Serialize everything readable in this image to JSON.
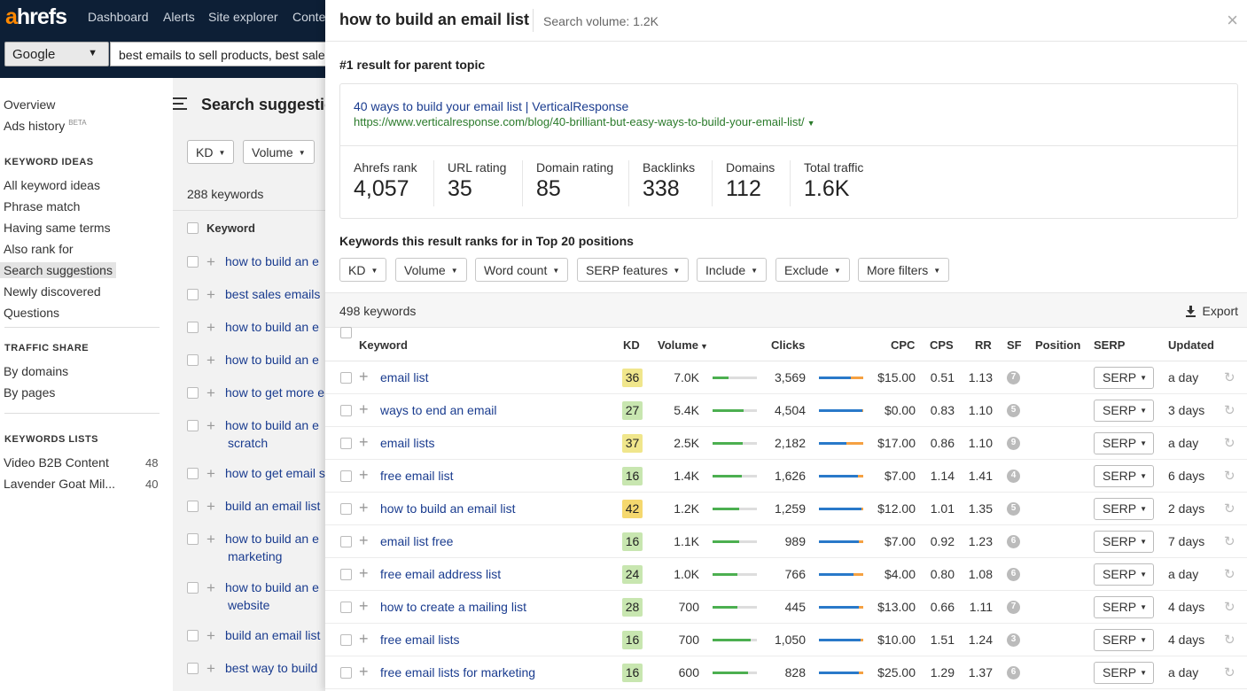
{
  "app": {
    "logo_a": "a",
    "logo_rest": "hrefs"
  },
  "topnav": [
    "Dashboard",
    "Alerts",
    "Site explorer",
    "Conte"
  ],
  "search": {
    "engine": "Google",
    "query": "best emails to sell products, best sale"
  },
  "sidebar": {
    "overview": "Overview",
    "ads_history": "Ads history",
    "beta": "BETA",
    "keyword_ideas_head": "KEYWORD IDEAS",
    "keyword_ideas": [
      "All keyword ideas",
      "Phrase match",
      "Having same terms",
      "Also rank for",
      "Search suggestions",
      "Newly discovered",
      "Questions"
    ],
    "traffic_share_head": "TRAFFIC SHARE",
    "traffic_share": [
      "By domains",
      "By pages"
    ],
    "keywords_lists_head": "KEYWORDS LISTS",
    "lists": [
      {
        "name": "Video B2B Content",
        "count": "48"
      },
      {
        "name": "Lavender Goat Mil...",
        "count": "40"
      }
    ]
  },
  "main": {
    "title": "Search suggestio",
    "kd_btn": "KD",
    "volume_btn": "Volume",
    "count": "288 keywords",
    "col_keyword": "Keyword",
    "rows": [
      {
        "l1": "how to build an e",
        "l2": ""
      },
      {
        "l1": "best sales emails",
        "l2": ""
      },
      {
        "l1": "how to build an e",
        "l2": ""
      },
      {
        "l1": "how to build an e",
        "l2": ""
      },
      {
        "l1": "how to get more e",
        "l2": ""
      },
      {
        "l1": "how to build an e",
        "l2": "scratch"
      },
      {
        "l1": "how to get email s",
        "l2": ""
      },
      {
        "l1": "build an email list",
        "l2": ""
      },
      {
        "l1": "how to build an e",
        "l2": "marketing"
      },
      {
        "l1": "how to build an e",
        "l2": "website"
      },
      {
        "l1": "build an email list",
        "l2": ""
      },
      {
        "l1": "best way to build",
        "l2": ""
      }
    ]
  },
  "panel": {
    "title": "how to build an email list",
    "volume": "Search volume: 1.2K",
    "close": "×",
    "parent_topic": "#1 result for parent topic",
    "result_title": "40 ways to build your email list | VerticalResponse",
    "result_url": "https://www.verticalresponse.com/blog/40-brilliant-but-easy-ways-to-build-your-email-list/",
    "metrics": [
      {
        "label": "Ahrefs rank",
        "value": "4,057"
      },
      {
        "label": "URL rating",
        "value": "35"
      },
      {
        "label": "Domain rating",
        "value": "85"
      },
      {
        "label": "Backlinks",
        "value": "338"
      },
      {
        "label": "Domains",
        "value": "112"
      },
      {
        "label": "Total traffic",
        "value": "1.6K"
      }
    ],
    "ranks_heading": "Keywords this result ranks for in Top 20 positions",
    "filters": [
      "KD",
      "Volume",
      "Word count",
      "SERP features",
      "Include",
      "Exclude",
      "More filters"
    ],
    "count": "498 keywords",
    "export": "Export",
    "columns": [
      "Keyword",
      "KD",
      "Volume",
      "Clicks",
      "CPC",
      "CPS",
      "RR",
      "SF",
      "Position",
      "SERP",
      "Updated"
    ],
    "rows": [
      {
        "kw": "email list",
        "kd": "36",
        "kd_color": "#f0e68c",
        "vol": "7.0K",
        "vol_frac": 0.35,
        "clicks": "3,569",
        "clicks_blue": 0.72,
        "clicks_orange": 0.28,
        "cpc": "$15.00",
        "cps": "0.51",
        "rr": "1.13",
        "sf": "7",
        "serp": "SERP",
        "updated": "a day"
      },
      {
        "kw": "ways to end an email",
        "kd": "27",
        "kd_color": "#c8e6b0",
        "vol": "5.4K",
        "vol_frac": 0.7,
        "clicks": "4,504",
        "clicks_blue": 0.98,
        "clicks_orange": 0.02,
        "cpc": "$0.00",
        "cps": "0.83",
        "rr": "1.10",
        "sf": "5",
        "serp": "SERP",
        "updated": "3 days"
      },
      {
        "kw": "email lists",
        "kd": "37",
        "kd_color": "#f0e68c",
        "vol": "2.5K",
        "vol_frac": 0.68,
        "clicks": "2,182",
        "clicks_blue": 0.62,
        "clicks_orange": 0.38,
        "cpc": "$17.00",
        "cps": "0.86",
        "rr": "1.10",
        "sf": "9",
        "serp": "SERP",
        "updated": "a day"
      },
      {
        "kw": "free email list",
        "kd": "16",
        "kd_color": "#c8e6b0",
        "vol": "1.4K",
        "vol_frac": 0.65,
        "clicks": "1,626",
        "clicks_blue": 0.88,
        "clicks_orange": 0.12,
        "cpc": "$7.00",
        "cps": "1.14",
        "rr": "1.41",
        "sf": "4",
        "serp": "SERP",
        "updated": "6 days"
      },
      {
        "kw": "how to build an email list",
        "kd": "42",
        "kd_color": "#f5d86e",
        "vol": "1.2K",
        "vol_frac": 0.6,
        "clicks": "1,259",
        "clicks_blue": 0.96,
        "clicks_orange": 0.04,
        "cpc": "$12.00",
        "cps": "1.01",
        "rr": "1.35",
        "sf": "5",
        "serp": "SERP",
        "updated": "2 days"
      },
      {
        "kw": "email list free",
        "kd": "16",
        "kd_color": "#c8e6b0",
        "vol": "1.1K",
        "vol_frac": 0.6,
        "clicks": "989",
        "clicks_blue": 0.9,
        "clicks_orange": 0.1,
        "cpc": "$7.00",
        "cps": "0.92",
        "rr": "1.23",
        "sf": "6",
        "serp": "SERP",
        "updated": "7 days"
      },
      {
        "kw": "free email address list",
        "kd": "24",
        "kd_color": "#c8e6b0",
        "vol": "1.0K",
        "vol_frac": 0.55,
        "clicks": "766",
        "clicks_blue": 0.78,
        "clicks_orange": 0.22,
        "cpc": "$4.00",
        "cps": "0.80",
        "rr": "1.08",
        "sf": "6",
        "serp": "SERP",
        "updated": "a day"
      },
      {
        "kw": "how to create a mailing list",
        "kd": "28",
        "kd_color": "#c8e6b0",
        "vol": "700",
        "vol_frac": 0.55,
        "clicks": "445",
        "clicks_blue": 0.9,
        "clicks_orange": 0.1,
        "cpc": "$13.00",
        "cps": "0.66",
        "rr": "1.11",
        "sf": "7",
        "serp": "SERP",
        "updated": "4 days"
      },
      {
        "kw": "free email lists",
        "kd": "16",
        "kd_color": "#c8e6b0",
        "vol": "700",
        "vol_frac": 0.85,
        "clicks": "1,050",
        "clicks_blue": 0.93,
        "clicks_orange": 0.07,
        "cpc": "$10.00",
        "cps": "1.51",
        "rr": "1.24",
        "sf": "3",
        "serp": "SERP",
        "updated": "4 days"
      },
      {
        "kw": "free email lists for marketing",
        "kd": "16",
        "kd_color": "#c8e6b0",
        "vol": "600",
        "vol_frac": 0.8,
        "clicks": "828",
        "clicks_blue": 0.9,
        "clicks_orange": 0.1,
        "cpc": "$25.00",
        "cps": "1.29",
        "rr": "1.37",
        "sf": "6",
        "serp": "SERP",
        "updated": "a day"
      }
    ]
  },
  "colors": {
    "topbar": "#0d1f36",
    "logo_accent": "#ff8800",
    "link": "#1a3c8f",
    "url_green": "#2a7a2a",
    "bar_green": "#4caf50",
    "bar_blue": "#2979c9",
    "bar_orange": "#f5a142"
  }
}
